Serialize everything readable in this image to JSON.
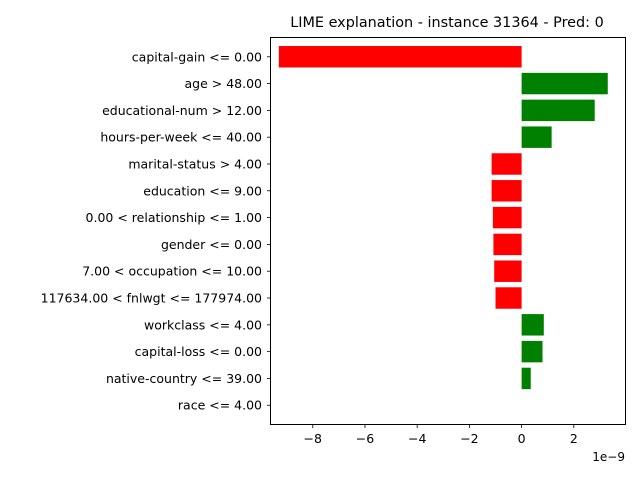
{
  "chart_data": {
    "type": "bar",
    "orientation": "horizontal",
    "title": "LIME explanation - instance 31364 - Pred: 0",
    "xlabel": "",
    "ylabel": "",
    "offset_label": "1e−9",
    "xlim": [
      -9.6,
      3.96
    ],
    "x_ticks": [
      -8,
      -6,
      -4,
      -2,
      0,
      2
    ],
    "x_tick_labels": [
      "−8",
      "−6",
      "−4",
      "−2",
      "0",
      "2"
    ],
    "grid": false,
    "legend": "none",
    "categories": [
      "capital-gain <= 0.00",
      "age > 48.00",
      "educational-num > 12.00",
      "hours-per-week <= 40.00",
      "marital-status > 4.00",
      "education <= 9.00",
      "0.00 < relationship <= 1.00",
      "gender <= 0.00",
      "7.00 < occupation <= 10.00",
      "117634.00 < fnlwgt <= 177974.00",
      "workclass <= 4.00",
      "capital-loss <= 0.00",
      "native-country <= 39.00",
      "race <= 4.00"
    ],
    "values": [
      -9.3,
      3.3,
      2.8,
      1.15,
      -1.15,
      -1.15,
      -1.1,
      -1.08,
      -1.05,
      -1.0,
      0.85,
      0.8,
      0.35,
      0.0
    ],
    "colors": {
      "positive": "#008000",
      "negative": "#ff0000",
      "axis": "#000000",
      "background": "#ffffff"
    }
  }
}
